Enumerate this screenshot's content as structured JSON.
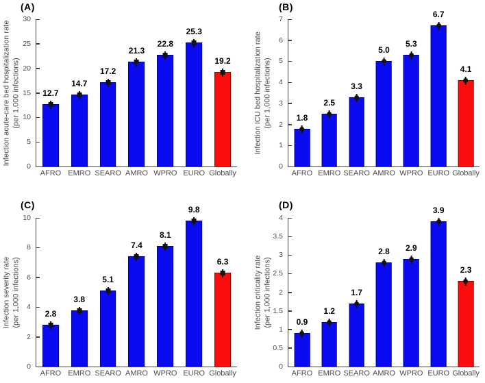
{
  "figure": {
    "description": "Four-panel bar chart of COVID-19 infection outcome rates by WHO region and globally",
    "colors": {
      "background": "#ffffff",
      "region_bar": "#0b0bf2",
      "region_bar_edge": "#000090",
      "global_bar": "#fb0d0d",
      "global_bar_edge": "#8c0000",
      "axis": "#404040",
      "tick_text": "#4a4a4a",
      "label_text": "#000000",
      "error_marker": "#111111"
    }
  },
  "chart_data": [
    {
      "type": "bar",
      "panel_label": "(A)",
      "categories": [
        "AFRO",
        "EMRO",
        "SEARO",
        "AMRO",
        "WPRO",
        "EURO",
        "Globally"
      ],
      "values": [
        12.7,
        14.7,
        17.2,
        21.3,
        22.8,
        25.3,
        19.2
      ],
      "value_labels": [
        "12.7",
        "14.7",
        "17.2",
        "21.3",
        "22.8",
        "25.3",
        "19.2"
      ],
      "bar_color_pattern": [
        "blue",
        "blue",
        "blue",
        "blue",
        "blue",
        "blue",
        "red"
      ],
      "marker": "square",
      "error_bars": true,
      "ylabel": "Infection acute-care bed hospitalization rate",
      "ylabel_line2": "(per 1,000 infections)",
      "ylim": [
        0,
        30
      ],
      "yticks": [
        0,
        5,
        10,
        15,
        20,
        25,
        30
      ],
      "ytick_labels": [
        "0",
        "5",
        "10",
        "15",
        "20",
        "25",
        "30"
      ],
      "grid": false
    },
    {
      "type": "bar",
      "panel_label": "(B)",
      "categories": [
        "AFRO",
        "EMRO",
        "SEARO",
        "AMRO",
        "WPRO",
        "EURO",
        "Globally"
      ],
      "values": [
        1.8,
        2.5,
        3.3,
        5.0,
        5.3,
        6.7,
        4.1
      ],
      "value_labels": [
        "1.8",
        "2.5",
        "3.3",
        "5.0",
        "5.3",
        "6.7",
        "4.1"
      ],
      "bar_color_pattern": [
        "blue",
        "blue",
        "blue",
        "blue",
        "blue",
        "blue",
        "red"
      ],
      "marker": "circle",
      "error_bars": true,
      "ylabel": "Infection ICU bed hospitalization rate",
      "ylabel_line2": "(per 1,000 infections)",
      "ylim": [
        0,
        7
      ],
      "yticks": [
        0,
        1,
        2,
        3,
        4,
        5,
        6,
        7
      ],
      "ytick_labels": [
        "0",
        "1",
        "2",
        "3",
        "4",
        "5",
        "6",
        "7"
      ],
      "grid": false
    },
    {
      "type": "bar",
      "panel_label": "(C)",
      "categories": [
        "AFRO",
        "EMRO",
        "SEARO",
        "AMRO",
        "WPRO",
        "EURO",
        "Globally"
      ],
      "values": [
        2.8,
        3.8,
        5.1,
        7.4,
        8.1,
        9.8,
        6.3
      ],
      "value_labels": [
        "2.8",
        "3.8",
        "5.1",
        "7.4",
        "8.1",
        "9.8",
        "6.3"
      ],
      "bar_color_pattern": [
        "blue",
        "blue",
        "blue",
        "blue",
        "blue",
        "blue",
        "red"
      ],
      "marker": "square",
      "error_bars": true,
      "ylabel": "Infection severity rate",
      "ylabel_line2": "(per 1,000 infections)",
      "ylim": [
        0,
        10
      ],
      "yticks": [
        0,
        2,
        4,
        6,
        8,
        10
      ],
      "ytick_labels": [
        "0",
        "2",
        "4",
        "6",
        "8",
        "10"
      ],
      "grid": false
    },
    {
      "type": "bar",
      "panel_label": "(D)",
      "categories": [
        "AFRO",
        "EMRO",
        "SEARO",
        "AMRO",
        "WPRO",
        "EURO",
        "Globally"
      ],
      "values": [
        0.9,
        1.2,
        1.7,
        2.8,
        2.9,
        3.9,
        2.3
      ],
      "value_labels": [
        "0.9",
        "1.2",
        "1.7",
        "2.8",
        "2.9",
        "3.9",
        "2.3"
      ],
      "bar_color_pattern": [
        "blue",
        "blue",
        "blue",
        "blue",
        "blue",
        "blue",
        "red"
      ],
      "marker": "circle",
      "error_bars": true,
      "ylabel": "Infection criticality rate",
      "ylabel_line2": "(per 1,000 infections)",
      "ylim": [
        0,
        4
      ],
      "yticks": [
        0,
        0.5,
        1,
        1.5,
        2,
        2.5,
        3,
        3.5,
        4
      ],
      "ytick_labels": [
        "0",
        "0.5",
        "1",
        "1.5",
        "2",
        "2.5",
        "3",
        "3.5",
        "4"
      ],
      "grid": false
    }
  ]
}
